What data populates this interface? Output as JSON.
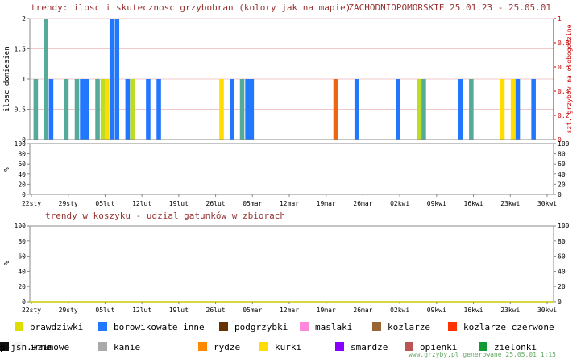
{
  "header": {
    "title": "trendy: ilosc i skutecznosc grzybobran (kolory jak na mapie)",
    "region_dates": "ZACHODNIOPOMORSKIE 25.01.23 - 25.05.01"
  },
  "footer": {
    "credit": "www.grzyby.pl generowane 25.05.01  1:15"
  },
  "legend": [
    {
      "label": "prawdziwki",
      "color": "#dddd00"
    },
    {
      "label": "borowikowate inne",
      "color": "#2277ff"
    },
    {
      "label": "podgrzybki",
      "color": "#663300"
    },
    {
      "label": "maslaki",
      "color": "#ff88dd"
    },
    {
      "label": "kozlarze",
      "color": "#996633"
    },
    {
      "label": "kozlarze czerwone",
      "color": "#ff3300"
    },
    {
      "label": "inne",
      "color": "#f4f4f4"
    },
    {
      "label": "kanie",
      "color": "#aaaaaa"
    },
    {
      "label": "rydze",
      "color": "#ff8800"
    },
    {
      "label": "kurki",
      "color": "#ffdd00"
    },
    {
      "label": "smardze",
      "color": "#8800ff"
    },
    {
      "label": "opienki",
      "color": "#bb5555"
    },
    {
      "label": "zielonki",
      "color": "#119933"
    },
    {
      "label": "p-jsn.+zimowe",
      "color": "#111111"
    }
  ],
  "colors": {
    "teal": "#55aa99",
    "blue": "#2277ff",
    "lime": "#bbdd22",
    "yellow": "#ffdd00",
    "orange": "#ee6611",
    "title_red": "#993333",
    "dark_red": "#cc0000",
    "grid_pink": "#f0c8c8",
    "axis_gray": "#888888",
    "credit_green": "#66aa66"
  },
  "chart_data": [
    {
      "type": "bar",
      "title": "trendy: ilosc i skutecznosc grzybobran (kolory jak na mapie)",
      "ylabel": "ilosc doniesien",
      "ylabel_right": "szt. grzybow na osobogodzine",
      "yticks": [
        "0",
        "0.5",
        "1",
        "1.5",
        "2"
      ],
      "yticks_right": [
        "0",
        "0.2",
        "0.4",
        "0.6",
        "0.8",
        "1"
      ],
      "ylim": [
        0,
        2
      ],
      "ylim_right": [
        0,
        1
      ],
      "xlabels": [
        "22sty",
        "29sty",
        "05lut",
        "12lut",
        "19lut",
        "26lut",
        "05mar",
        "12mar",
        "19mar",
        "26mar",
        "02kwi",
        "09kwi",
        "16kwi",
        "23kwi",
        "30kwi"
      ],
      "x_day_range": [
        0,
        98
      ],
      "bars": [
        {
          "day": 0.4,
          "value": 1,
          "color": "teal"
        },
        {
          "day": 2.3,
          "value": 2,
          "color": "teal"
        },
        {
          "day": 3.3,
          "value": 1,
          "color": "blue"
        },
        {
          "day": 6.2,
          "value": 1,
          "color": "teal"
        },
        {
          "day": 8.2,
          "value": 1,
          "color": "teal"
        },
        {
          "day": 9.2,
          "value": 1,
          "color": "blue"
        },
        {
          "day": 10.0,
          "value": 1,
          "color": "blue"
        },
        {
          "day": 12.1,
          "value": 1,
          "color": "teal"
        },
        {
          "day": 13.1,
          "value": 1,
          "color": "lime"
        },
        {
          "day": 13.9,
          "value": 1,
          "color": "yellow"
        },
        {
          "day": 14.8,
          "value": 2,
          "color": "blue"
        },
        {
          "day": 15.8,
          "value": 2,
          "color": "blue"
        },
        {
          "day": 17.8,
          "value": 1,
          "color": "blue"
        },
        {
          "day": 18.7,
          "value": 1,
          "color": "lime"
        },
        {
          "day": 21.7,
          "value": 1,
          "color": "blue"
        },
        {
          "day": 23.7,
          "value": 1,
          "color": "blue"
        },
        {
          "day": 35.6,
          "value": 1,
          "color": "yellow"
        },
        {
          "day": 37.6,
          "value": 1,
          "color": "blue"
        },
        {
          "day": 39.5,
          "value": 1,
          "color": "teal"
        },
        {
          "day": 40.5,
          "value": 1,
          "color": "blue"
        },
        {
          "day": 41.3,
          "value": 1,
          "color": "blue"
        },
        {
          "day": 57.2,
          "value": 1,
          "color": "orange"
        },
        {
          "day": 61.2,
          "value": 1,
          "color": "blue"
        },
        {
          "day": 69.0,
          "value": 1,
          "color": "blue"
        },
        {
          "day": 73.0,
          "value": 1,
          "color": "lime"
        },
        {
          "day": 73.9,
          "value": 1,
          "color": "teal"
        },
        {
          "day": 80.9,
          "value": 1,
          "color": "blue"
        },
        {
          "day": 82.9,
          "value": 1,
          "color": "teal"
        },
        {
          "day": 88.8,
          "value": 1,
          "color": "yellow"
        },
        {
          "day": 90.8,
          "value": 1,
          "color": "yellow"
        },
        {
          "day": 91.7,
          "value": 1,
          "color": "blue"
        },
        {
          "day": 94.7,
          "value": 1,
          "color": "blue"
        }
      ]
    },
    {
      "type": "area",
      "title": "",
      "ylabel": "%",
      "yticks": [
        "0",
        "20",
        "40",
        "60",
        "80",
        "100"
      ],
      "ylim": [
        0,
        100
      ],
      "xlabels": [
        "22sty",
        "29sty",
        "05lut",
        "12lut",
        "19lut",
        "26lut",
        "05mar",
        "12mar",
        "19mar",
        "26mar",
        "02kwi",
        "09kwi",
        "16kwi",
        "23kwi",
        "30kwi"
      ],
      "series": []
    },
    {
      "type": "area",
      "title": "trendy w koszyku - udzial gatunków w zbiorach",
      "ylabel": "%",
      "yticks": [
        "0",
        "20",
        "40",
        "60",
        "80",
        "100"
      ],
      "ylim": [
        0,
        100
      ],
      "xlabels": [
        "22sty",
        "29sty",
        "05lut",
        "12lut",
        "19lut",
        "26lut",
        "05mar",
        "12mar",
        "19mar",
        "26mar",
        "02kwi",
        "09kwi",
        "16kwi",
        "23kwi",
        "30kwi"
      ],
      "series": []
    }
  ]
}
